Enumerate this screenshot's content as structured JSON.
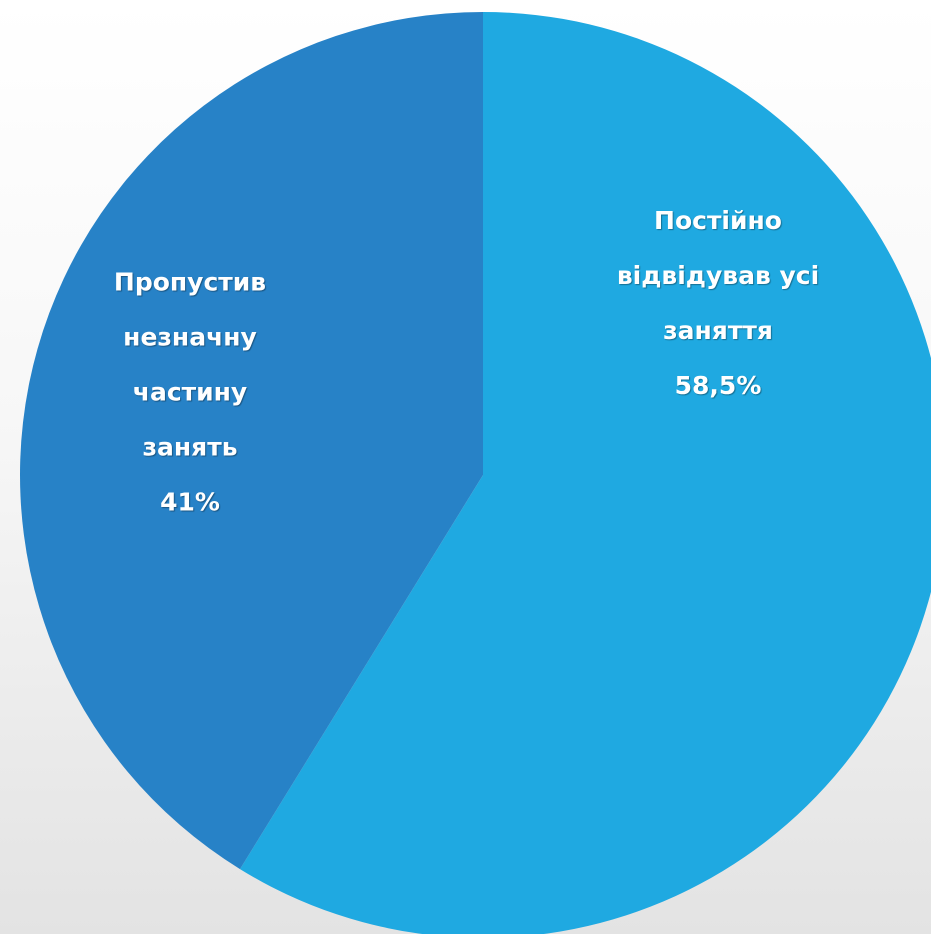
{
  "chart_data": {
    "type": "pie",
    "categories": [
      "Постійно відвідував усі заняття",
      "Пропустив незначну частину занять"
    ],
    "values": [
      58.5,
      41
    ],
    "labels": [
      {
        "lines": [
          "Постійно",
          "відвідував усі",
          "заняття",
          "58,5%"
        ]
      },
      {
        "lines": [
          "Пропустив",
          "незначну",
          "частину",
          "занять",
          "41%"
        ]
      }
    ],
    "colors": [
      "#1FA9E1",
      "#2782C7"
    ],
    "start_angle_deg": 0,
    "direction": "clockwise"
  }
}
